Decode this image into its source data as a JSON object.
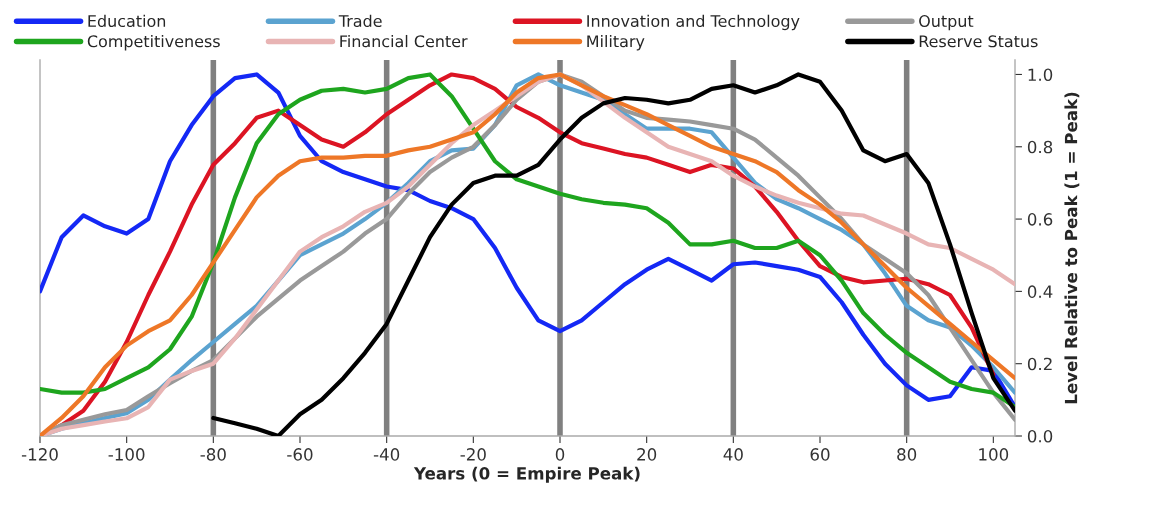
{
  "chart_data": {
    "type": "line",
    "xlabel": "Years (0 = Empire Peak)",
    "ylabel": "Level Relative to Peak (1 = Peak)",
    "x": [
      -120,
      -115,
      -110,
      -105,
      -100,
      -95,
      -90,
      -85,
      -80,
      -75,
      -70,
      -65,
      -60,
      -55,
      -50,
      -45,
      -40,
      -35,
      -30,
      -25,
      -20,
      -15,
      -10,
      -5,
      0,
      5,
      10,
      15,
      20,
      25,
      30,
      35,
      40,
      45,
      50,
      55,
      60,
      65,
      70,
      75,
      80,
      85,
      90,
      95,
      100,
      105
    ],
    "series": [
      {
        "name": "Education",
        "color": "#1428f5",
        "values": [
          0.4,
          0.55,
          0.61,
          0.58,
          0.56,
          0.6,
          0.76,
          0.86,
          0.94,
          0.99,
          1.0,
          0.95,
          0.83,
          0.76,
          0.73,
          0.71,
          0.69,
          0.68,
          0.65,
          0.63,
          0.6,
          0.52,
          0.41,
          0.32,
          0.29,
          0.32,
          0.37,
          0.42,
          0.46,
          0.49,
          0.46,
          0.43,
          0.475,
          0.48,
          0.47,
          0.46,
          0.44,
          0.37,
          0.28,
          0.2,
          0.14,
          0.1,
          0.11,
          0.19,
          0.18,
          0.08
        ]
      },
      {
        "name": "Trade",
        "color": "#5ba3d0",
        "values": [
          0,
          0.02,
          0.035,
          0.05,
          0.063,
          0.1,
          0.156,
          0.21,
          0.26,
          0.31,
          0.36,
          0.43,
          0.5,
          0.53,
          0.56,
          0.6,
          0.645,
          0.7,
          0.76,
          0.79,
          0.795,
          0.86,
          0.97,
          1.0,
          0.97,
          0.95,
          0.93,
          0.89,
          0.85,
          0.85,
          0.85,
          0.84,
          0.77,
          0.7,
          0.655,
          0.63,
          0.6,
          0.57,
          0.53,
          0.45,
          0.36,
          0.32,
          0.3,
          0.25,
          0.19,
          0.12
        ]
      },
      {
        "name": "Innovation and Technology",
        "color": "#dc1423",
        "values": [
          0.0,
          0.03,
          0.07,
          0.15,
          0.26,
          0.39,
          0.51,
          0.64,
          0.75,
          0.81,
          0.88,
          0.9,
          0.86,
          0.82,
          0.8,
          0.84,
          0.89,
          0.93,
          0.97,
          1.0,
          0.99,
          0.96,
          0.91,
          0.88,
          0.84,
          0.81,
          0.795,
          0.78,
          0.77,
          0.75,
          0.73,
          0.75,
          0.74,
          0.69,
          0.62,
          0.54,
          0.47,
          0.44,
          0.425,
          0.43,
          0.435,
          0.42,
          0.39,
          0.3,
          0.17,
          null
        ]
      },
      {
        "name": "Output",
        "color": "#999999",
        "values": [
          0,
          0.03,
          0.045,
          0.06,
          0.072,
          0.11,
          0.146,
          0.18,
          0.21,
          0.27,
          0.33,
          0.38,
          0.43,
          0.47,
          0.51,
          0.56,
          0.6,
          0.67,
          0.73,
          0.77,
          0.8,
          0.86,
          0.93,
          0.98,
          1.0,
          0.98,
          0.94,
          0.9,
          0.88,
          0.875,
          0.87,
          0.86,
          0.85,
          0.82,
          0.77,
          0.72,
          0.66,
          0.6,
          0.53,
          0.49,
          0.45,
          0.39,
          0.3,
          0.21,
          0.12,
          0.045
        ]
      },
      {
        "name": "Competitiveness",
        "color": "#1ea51e",
        "values": [
          0.13,
          0.12,
          0.12,
          0.13,
          0.16,
          0.19,
          0.24,
          0.33,
          0.48,
          0.66,
          0.81,
          0.89,
          0.93,
          0.955,
          0.96,
          0.95,
          0.96,
          0.99,
          1.0,
          0.94,
          0.85,
          0.76,
          0.71,
          0.69,
          0.67,
          0.655,
          0.645,
          0.64,
          0.63,
          0.59,
          0.53,
          0.53,
          0.54,
          0.52,
          0.52,
          0.54,
          0.5,
          0.43,
          0.34,
          0.28,
          0.23,
          0.19,
          0.15,
          0.13,
          0.12,
          0.08
        ]
      },
      {
        "name": "Financial Center",
        "color": "#e8b4b4",
        "values": [
          0,
          0.02,
          0.03,
          0.04,
          0.049,
          0.08,
          0.156,
          0.18,
          0.2,
          0.27,
          0.35,
          0.43,
          0.51,
          0.55,
          0.58,
          0.62,
          0.645,
          0.69,
          0.75,
          0.81,
          0.86,
          0.9,
          0.94,
          0.98,
          1.0,
          0.97,
          0.925,
          0.88,
          0.84,
          0.8,
          0.78,
          0.76,
          0.72,
          0.69,
          0.665,
          0.645,
          0.63,
          0.615,
          0.61,
          0.585,
          0.56,
          0.53,
          0.52,
          0.49,
          0.46,
          0.42
        ]
      },
      {
        "name": "Military",
        "color": "#ee7727",
        "values": [
          0,
          0.05,
          0.11,
          0.19,
          0.25,
          0.29,
          0.32,
          0.39,
          0.48,
          0.57,
          0.66,
          0.72,
          0.76,
          0.77,
          0.77,
          0.775,
          0.775,
          0.79,
          0.8,
          0.82,
          0.84,
          0.89,
          0.95,
          0.99,
          1.0,
          0.97,
          0.94,
          0.915,
          0.89,
          0.86,
          0.83,
          0.8,
          0.78,
          0.76,
          0.73,
          0.68,
          0.64,
          0.59,
          0.53,
          0.47,
          0.41,
          0.36,
          0.31,
          0.26,
          0.21,
          0.16
        ]
      },
      {
        "name": "Reserve Status",
        "color": "#000000",
        "values": [
          null,
          null,
          null,
          null,
          null,
          null,
          null,
          null,
          0.05,
          0.035,
          0.02,
          0.0,
          0.06,
          0.1,
          0.16,
          0.23,
          0.31,
          0.43,
          0.55,
          0.64,
          0.7,
          0.72,
          0.72,
          0.75,
          0.82,
          0.88,
          0.92,
          0.935,
          0.93,
          0.92,
          0.93,
          0.96,
          0.97,
          0.95,
          0.97,
          1.0,
          0.98,
          0.9,
          0.79,
          0.76,
          0.78,
          0.7,
          0.53,
          0.34,
          0.16,
          0.07
        ]
      }
    ],
    "xlim": [
      -120,
      105
    ],
    "ylim": [
      0,
      1.04
    ],
    "xticks": [
      -120,
      -100,
      -80,
      -60,
      -40,
      -20,
      0,
      20,
      40,
      60,
      80,
      100
    ],
    "yticks": [
      {
        "value": 0,
        "label": "0.0"
      },
      {
        "value": 0.2,
        "label": "0.2"
      },
      {
        "value": 0.4,
        "label": "0.4"
      },
      {
        "value": 0.6,
        "label": "0.6"
      },
      {
        "value": 0.8,
        "label": "0.8"
      },
      {
        "value": 1.0,
        "label": "1.0"
      }
    ],
    "ref_lines": [
      {
        "axis": "x",
        "value": -80,
        "color": "#808080"
      },
      {
        "axis": "x",
        "value": -40,
        "color": "#808080"
      },
      {
        "axis": "x",
        "value": 0,
        "color": "#808080"
      },
      {
        "axis": "x",
        "value": 40,
        "color": "#808080"
      },
      {
        "axis": "x",
        "value": 80,
        "color": "#808080"
      }
    ],
    "legend": "top",
    "grid": false,
    "marker": "none",
    "line_style": "solid"
  }
}
